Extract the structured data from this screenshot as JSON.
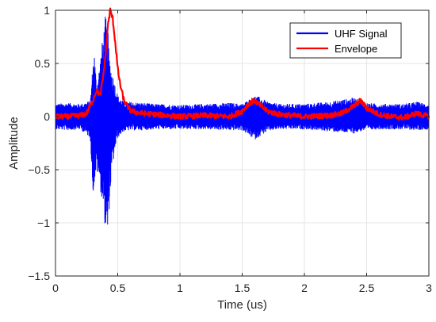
{
  "chart_data": {
    "type": "line",
    "title": "",
    "xlabel": "Time (us)",
    "ylabel": "Amplitude",
    "xlim": [
      0,
      3
    ],
    "ylim": [
      -1.5,
      1
    ],
    "xticks": [
      0,
      0.5,
      1,
      1.5,
      2,
      2.5,
      3
    ],
    "xtick_labels": [
      "0",
      "0.5",
      "1",
      "1.5",
      "2",
      "2.5",
      "3"
    ],
    "yticks": [
      -1.5,
      -1,
      -0.5,
      0,
      0.5,
      1
    ],
    "ytick_labels": [
      "−1.5",
      "−1",
      "−0.5",
      "0",
      "0.5",
      "1"
    ],
    "grid": true,
    "legend_position": "top-right",
    "series": [
      {
        "name": "UHF Signal",
        "color": "#0000ff",
        "style": "noisy oscillating band",
        "x": [
          0,
          0.1,
          0.2,
          0.28,
          0.3,
          0.31,
          0.33,
          0.35,
          0.38,
          0.4,
          0.42,
          0.43,
          0.45,
          0.48,
          0.5,
          0.55,
          0.6,
          0.7,
          0.8,
          1.0,
          1.2,
          1.4,
          1.5,
          1.6,
          1.65,
          1.7,
          1.8,
          2.0,
          2.2,
          2.4,
          2.45,
          2.5,
          2.6,
          2.8,
          2.9,
          3.0
        ],
        "upper": [
          0.12,
          0.13,
          0.12,
          0.15,
          0.5,
          0.65,
          0.3,
          0.45,
          0.75,
          0.95,
          0.85,
          0.6,
          0.45,
          0.3,
          0.2,
          0.14,
          0.14,
          0.13,
          0.12,
          0.11,
          0.12,
          0.13,
          0.12,
          0.2,
          0.18,
          0.14,
          0.12,
          0.12,
          0.14,
          0.18,
          0.15,
          0.13,
          0.12,
          0.12,
          0.14,
          0.12
        ],
        "lower": [
          -0.12,
          -0.13,
          -0.12,
          -0.2,
          -0.75,
          -0.65,
          -0.5,
          -0.6,
          -0.85,
          -1.05,
          -1.2,
          -0.9,
          -0.55,
          -0.3,
          -0.2,
          -0.14,
          -0.13,
          -0.13,
          -0.12,
          -0.12,
          -0.12,
          -0.13,
          -0.13,
          -0.22,
          -0.18,
          -0.14,
          -0.12,
          -0.12,
          -0.14,
          -0.16,
          -0.14,
          -0.13,
          -0.12,
          -0.12,
          -0.13,
          -0.12
        ]
      },
      {
        "name": "Envelope",
        "color": "#ff0000",
        "x": [
          0,
          0.1,
          0.2,
          0.25,
          0.3,
          0.33,
          0.36,
          0.38,
          0.4,
          0.42,
          0.44,
          0.46,
          0.48,
          0.5,
          0.52,
          0.55,
          0.6,
          0.65,
          0.7,
          0.8,
          1.0,
          1.2,
          1.4,
          1.5,
          1.55,
          1.6,
          1.65,
          1.7,
          1.8,
          2.0,
          2.2,
          2.3,
          2.4,
          2.45,
          2.5,
          2.6,
          2.7,
          2.8,
          2.9,
          3.0
        ],
        "y": [
          0.0,
          0.0,
          0.01,
          0.03,
          0.15,
          0.25,
          0.2,
          0.35,
          0.55,
          0.85,
          1.0,
          0.92,
          0.7,
          0.45,
          0.3,
          0.15,
          0.06,
          0.04,
          0.03,
          0.02,
          0.0,
          0.01,
          0.0,
          0.05,
          0.12,
          0.15,
          0.1,
          0.05,
          0.02,
          0.0,
          0.01,
          0.03,
          0.1,
          0.15,
          0.08,
          0.02,
          0.0,
          -0.01,
          0.03,
          0.0
        ]
      }
    ]
  }
}
